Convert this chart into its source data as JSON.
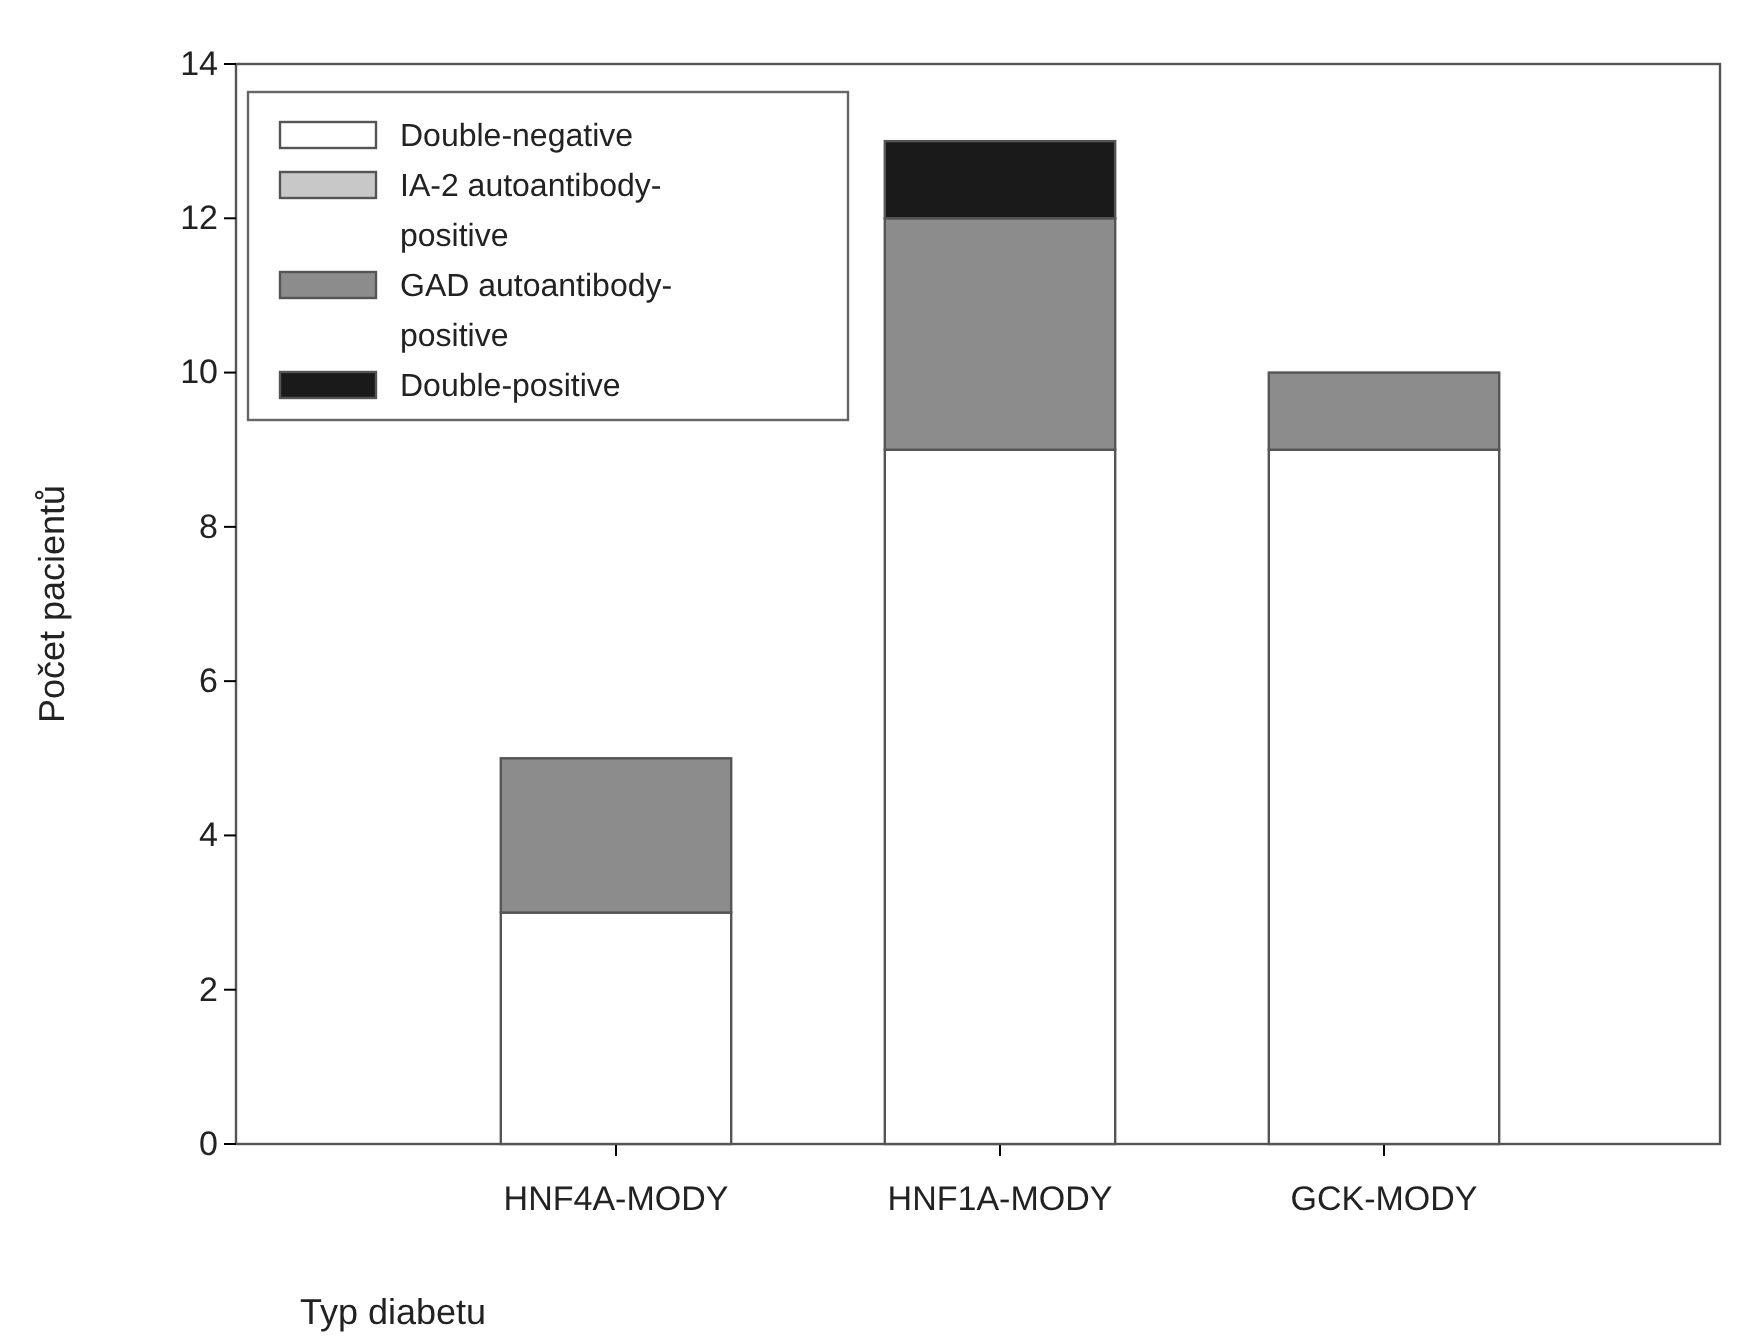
{
  "chart_data": {
    "type": "bar",
    "stacked": true,
    "categories": [
      "HNF4A-MODY",
      "HNF1A-MODY",
      "GCK-MODY"
    ],
    "xlabel": "Typ diabetu",
    "ylabel": "Počet pacientů",
    "ylim": [
      0,
      14
    ],
    "yticks": [
      0,
      2,
      4,
      6,
      8,
      10,
      12,
      14
    ],
    "legend": "top left",
    "grid": false,
    "series": [
      {
        "name": "Double-negative",
        "color": "#ffffff",
        "values": [
          3,
          9,
          9
        ]
      },
      {
        "name": "IA-2 autoantibody-positive",
        "color": "#c8c8c8",
        "values": [
          0,
          0,
          0
        ]
      },
      {
        "name": "GAD autoantibody-positive",
        "color": "#8c8c8c",
        "values": [
          2,
          3,
          1
        ]
      },
      {
        "name": "Double-positive",
        "color": "#1a1a1a",
        "values": [
          0,
          1,
          0
        ]
      }
    ]
  }
}
